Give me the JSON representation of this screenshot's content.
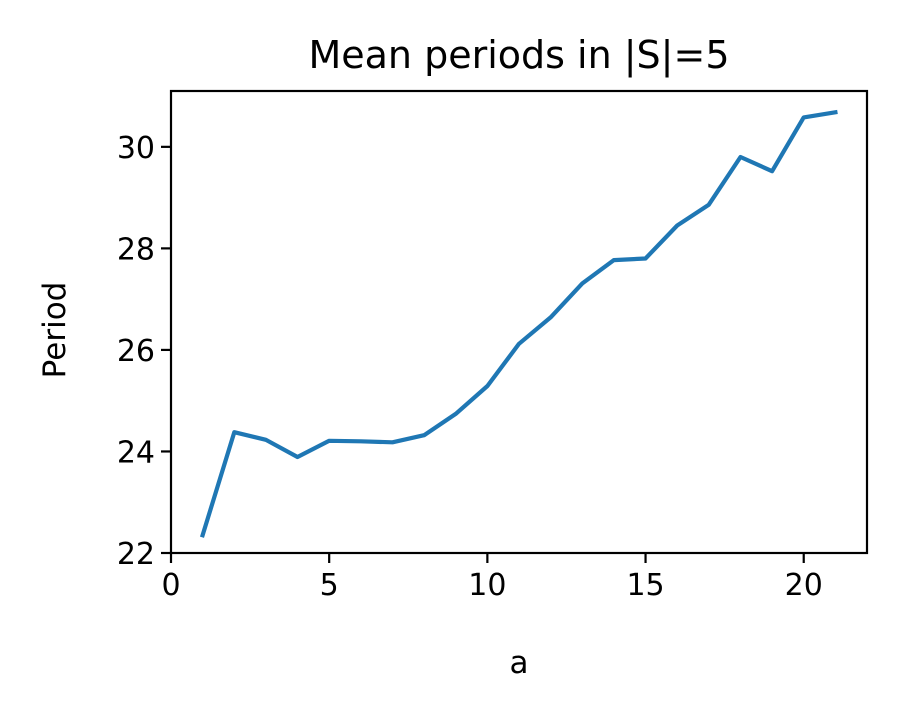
{
  "chart_data": {
    "type": "line",
    "title": "Mean periods in |S|=5",
    "xlabel": "a",
    "ylabel": "Period",
    "xlim": [
      0,
      22
    ],
    "ylim": [
      22,
      31.1
    ],
    "xticks": [
      0,
      5,
      10,
      15,
      20
    ],
    "yticks": [
      22,
      24,
      26,
      28,
      30
    ],
    "grid": false,
    "series": [
      {
        "color": "#1f77b4",
        "x": [
          1,
          2,
          3,
          4,
          5,
          6,
          7,
          8,
          9,
          10,
          11,
          12,
          13,
          14,
          15,
          16,
          17,
          18,
          19,
          20,
          21
        ],
        "y": [
          22.35,
          24.38,
          24.23,
          23.89,
          24.21,
          24.2,
          24.18,
          24.32,
          24.74,
          25.29,
          26.12,
          26.64,
          27.31,
          27.77,
          27.8,
          28.45,
          28.86,
          29.8,
          29.52,
          30.58,
          30.68
        ]
      }
    ]
  }
}
